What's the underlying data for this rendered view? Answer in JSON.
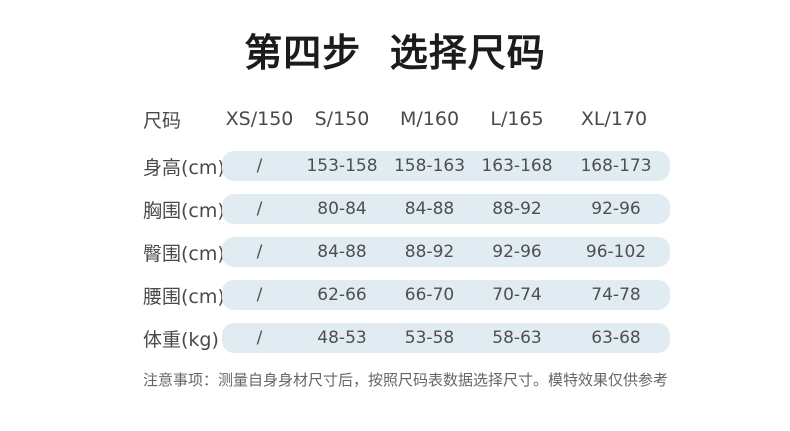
{
  "title": "第四步  选择尺码",
  "chart_data": {
    "type": "table",
    "title": "第四步 选择尺码",
    "columns": [
      "尺码",
      "XS/150",
      "S/150",
      "M/160",
      "L/165",
      "XL/170"
    ],
    "rows": [
      {
        "label": "身高(cm)",
        "values": [
          "/",
          "153-158",
          "158-163",
          "163-168",
          "168-173"
        ]
      },
      {
        "label": "胸围(cm)",
        "values": [
          "/",
          "80-84",
          "84-88",
          "88-92",
          "92-96"
        ]
      },
      {
        "label": "臀围(cm)",
        "values": [
          "/",
          "84-88",
          "88-92",
          "92-96",
          "96-102"
        ]
      },
      {
        "label": "腰围(cm)",
        "values": [
          "/",
          "62-66",
          "66-70",
          "70-74",
          "74-78"
        ]
      },
      {
        "label": "体重(kg)",
        "values": [
          "/",
          "48-53",
          "53-58",
          "58-63",
          "63-68"
        ]
      }
    ],
    "note": "注意事项：测量自身身材尺寸后，按照尺码表数据选择尺寸。模特效果仅供参考"
  },
  "colors": {
    "page_background": "#ffffff",
    "pill_background": "#e0ecf2",
    "title_text": "#1c1c1c",
    "header_text": "#4a4a4a",
    "value_text": "#4f4f4f",
    "note_text": "#666666"
  }
}
